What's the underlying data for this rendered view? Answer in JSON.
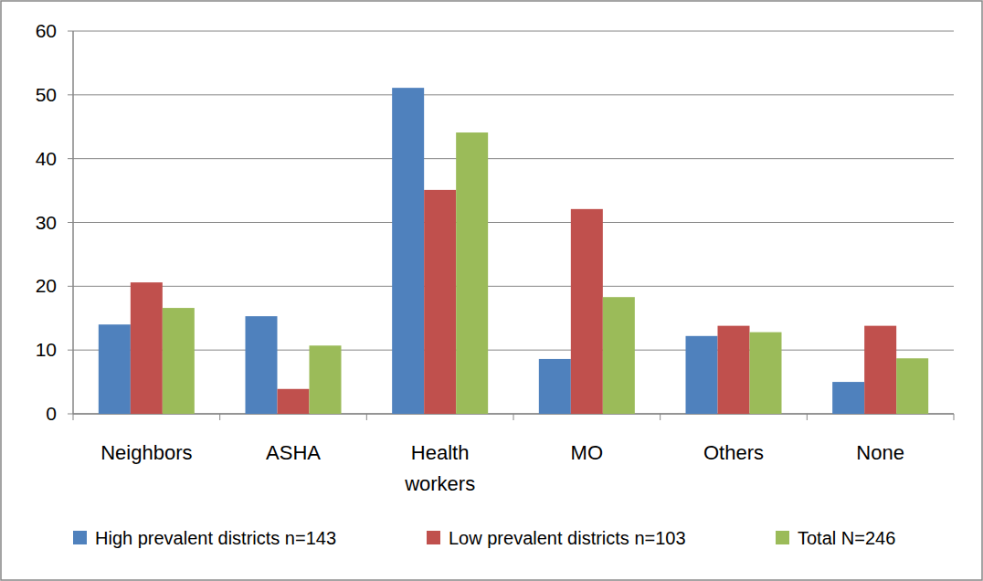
{
  "chart_data": {
    "type": "bar",
    "categories": [
      "Neighbors",
      "ASHA",
      "Health workers",
      "MO",
      "Others",
      "None"
    ],
    "series": [
      {
        "name": "High prevalent districts n=143",
        "color": "#4f81bd",
        "values": [
          14.0,
          15.3,
          51.1,
          8.6,
          12.2,
          5.0
        ]
      },
      {
        "name": "Low prevalent districts n=103",
        "color": "#c0504d",
        "values": [
          20.6,
          3.9,
          35.1,
          32.1,
          13.8,
          13.8
        ]
      },
      {
        "name": "Total N=246",
        "color": "#9bbb59",
        "values": [
          16.6,
          10.7,
          44.1,
          18.3,
          12.8,
          8.7
        ]
      }
    ],
    "ylim": [
      0,
      60
    ],
    "yticks": [
      0,
      10,
      20,
      30,
      40,
      50,
      60
    ],
    "grid": true,
    "legend": "bottom"
  }
}
